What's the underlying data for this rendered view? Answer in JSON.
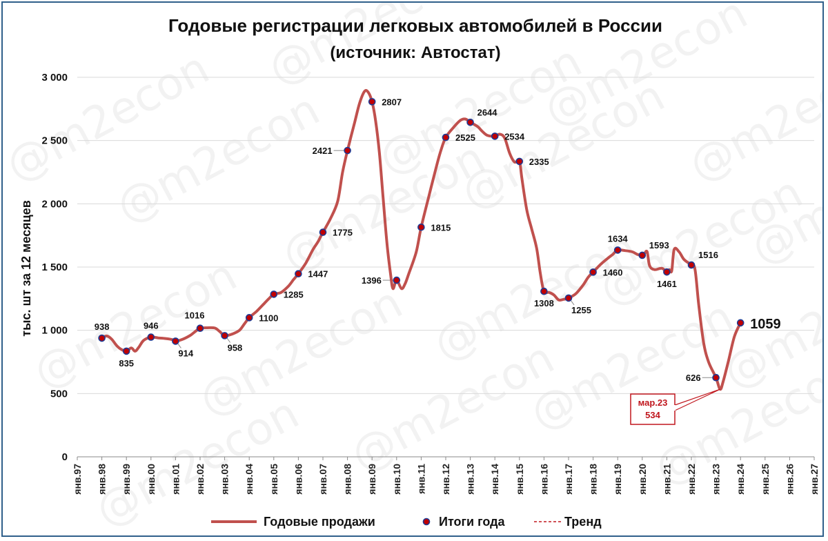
{
  "chart_data": {
    "type": "line",
    "title": "Годовые регистрации легковых автомобилей в России",
    "subtitle": "(источник: Автостат)",
    "ylabel": "тыс. шт за 12 месяцев",
    "ylim": [
      0,
      3000
    ],
    "yticks": [
      "0",
      "500",
      "1 000",
      "1 500",
      "2 000",
      "2 500",
      "3 000"
    ],
    "ytick_values": [
      0,
      500,
      1000,
      1500,
      2000,
      2500,
      3000
    ],
    "x_range": [
      1997,
      2027
    ],
    "xticks": [
      "янв.97",
      "янв.98",
      "янв.99",
      "янв.00",
      "янв.01",
      "янв.02",
      "янв.03",
      "янв.04",
      "янв.05",
      "янв.06",
      "янв.07",
      "янв.08",
      "янв.09",
      "янв.10",
      "янв.11",
      "янв.12",
      "янв.13",
      "янв.14",
      "янв.15",
      "янв.16",
      "янв.17",
      "янв.18",
      "янв.19",
      "янв.20",
      "янв.21",
      "янв.22",
      "янв.23",
      "янв.24",
      "янв.25",
      "янв.26",
      "янв.27"
    ],
    "grid": "horizontal",
    "legend_position": "bottom",
    "colors": {
      "line": "#c0504d",
      "marker_fill": "#c00000",
      "marker_stroke": "#1f3a93",
      "trend": "#c0161d",
      "grid": "#d9d9d9"
    },
    "series": [
      {
        "name": "Годовые продажи",
        "type": "line",
        "points": [
          [
            1998.0,
            938
          ],
          [
            1998.2,
            955
          ],
          [
            1998.4,
            930
          ],
          [
            1998.6,
            880
          ],
          [
            1998.8,
            848
          ],
          [
            1999.0,
            835
          ],
          [
            1999.2,
            860
          ],
          [
            1999.35,
            835
          ],
          [
            1999.5,
            865
          ],
          [
            1999.7,
            920
          ],
          [
            2000.0,
            946
          ],
          [
            2000.3,
            940
          ],
          [
            2000.6,
            935
          ],
          [
            2000.9,
            925
          ],
          [
            2001.0,
            914
          ],
          [
            2001.3,
            930
          ],
          [
            2001.6,
            960
          ],
          [
            2001.8,
            990
          ],
          [
            2002.0,
            1016
          ],
          [
            2002.3,
            1020
          ],
          [
            2002.6,
            1018
          ],
          [
            2002.8,
            990
          ],
          [
            2003.0,
            958
          ],
          [
            2003.3,
            970
          ],
          [
            2003.6,
            1000
          ],
          [
            2003.8,
            1050
          ],
          [
            2004.0,
            1100
          ],
          [
            2004.3,
            1150
          ],
          [
            2004.6,
            1210
          ],
          [
            2004.8,
            1250
          ],
          [
            2005.0,
            1285
          ],
          [
            2005.3,
            1300
          ],
          [
            2005.6,
            1350
          ],
          [
            2005.8,
            1400
          ],
          [
            2006.0,
            1447
          ],
          [
            2006.3,
            1530
          ],
          [
            2006.6,
            1640
          ],
          [
            2006.8,
            1700
          ],
          [
            2007.0,
            1775
          ],
          [
            2007.3,
            1880
          ],
          [
            2007.6,
            2020
          ],
          [
            2007.8,
            2250
          ],
          [
            2008.0,
            2421
          ],
          [
            2008.3,
            2650
          ],
          [
            2008.5,
            2800
          ],
          [
            2008.7,
            2890
          ],
          [
            2008.85,
            2880
          ],
          [
            2009.0,
            2807
          ],
          [
            2009.15,
            2650
          ],
          [
            2009.3,
            2400
          ],
          [
            2009.45,
            2050
          ],
          [
            2009.6,
            1700
          ],
          [
            2009.75,
            1450
          ],
          [
            2009.85,
            1330
          ],
          [
            2010.0,
            1396
          ],
          [
            2010.2,
            1330
          ],
          [
            2010.35,
            1370
          ],
          [
            2010.5,
            1450
          ],
          [
            2010.8,
            1620
          ],
          [
            2011.0,
            1815
          ],
          [
            2011.3,
            2050
          ],
          [
            2011.6,
            2280
          ],
          [
            2011.8,
            2420
          ],
          [
            2012.0,
            2525
          ],
          [
            2012.3,
            2600
          ],
          [
            2012.6,
            2660
          ],
          [
            2012.8,
            2670
          ],
          [
            2013.0,
            2644
          ],
          [
            2013.3,
            2610
          ],
          [
            2013.5,
            2570
          ],
          [
            2013.7,
            2540
          ],
          [
            2014.0,
            2534
          ],
          [
            2014.2,
            2550
          ],
          [
            2014.4,
            2520
          ],
          [
            2014.6,
            2400
          ],
          [
            2014.8,
            2330
          ],
          [
            2015.0,
            2335
          ],
          [
            2015.1,
            2200
          ],
          [
            2015.3,
            1950
          ],
          [
            2015.5,
            1800
          ],
          [
            2015.7,
            1650
          ],
          [
            2015.85,
            1450
          ],
          [
            2016.0,
            1308
          ],
          [
            2016.2,
            1300
          ],
          [
            2016.4,
            1280
          ],
          [
            2016.6,
            1240
          ],
          [
            2016.8,
            1245
          ],
          [
            2017.0,
            1255
          ],
          [
            2017.3,
            1290
          ],
          [
            2017.6,
            1360
          ],
          [
            2017.8,
            1420
          ],
          [
            2018.0,
            1460
          ],
          [
            2018.3,
            1520
          ],
          [
            2018.6,
            1570
          ],
          [
            2018.8,
            1600
          ],
          [
            2019.0,
            1634
          ],
          [
            2019.3,
            1630
          ],
          [
            2019.6,
            1620
          ],
          [
            2019.8,
            1600
          ],
          [
            2020.0,
            1593
          ],
          [
            2020.1,
            1610
          ],
          [
            2020.2,
            1620
          ],
          [
            2020.3,
            1510
          ],
          [
            2020.5,
            1480
          ],
          [
            2020.8,
            1490
          ],
          [
            2021.0,
            1461
          ],
          [
            2021.1,
            1480
          ],
          [
            2021.2,
            1470
          ],
          [
            2021.3,
            1640
          ],
          [
            2021.5,
            1620
          ],
          [
            2021.7,
            1560
          ],
          [
            2022.0,
            1516
          ],
          [
            2022.15,
            1480
          ],
          [
            2022.3,
            1200
          ],
          [
            2022.5,
            900
          ],
          [
            2022.7,
            750
          ],
          [
            2023.0,
            626
          ],
          [
            2023.17,
            534
          ],
          [
            2023.3,
            600
          ],
          [
            2023.5,
            750
          ],
          [
            2023.75,
            950
          ],
          [
            2024.0,
            1059
          ]
        ]
      },
      {
        "name": "Итоги года",
        "type": "scatter",
        "points": [
          {
            "x": 1998,
            "y": 938,
            "label": "938",
            "pos": "above"
          },
          {
            "x": 1999,
            "y": 835,
            "label": "835",
            "pos": "below"
          },
          {
            "x": 2000,
            "y": 946,
            "label": "946",
            "pos": "above"
          },
          {
            "x": 2001,
            "y": 914,
            "label": "914",
            "pos": "below-right"
          },
          {
            "x": 2002,
            "y": 1016,
            "label": "1016",
            "pos": "above-left"
          },
          {
            "x": 2003,
            "y": 958,
            "label": "958",
            "pos": "below-right"
          },
          {
            "x": 2004,
            "y": 1100,
            "label": "1100",
            "pos": "right"
          },
          {
            "x": 2005,
            "y": 1285,
            "label": "1285",
            "pos": "right"
          },
          {
            "x": 2006,
            "y": 1447,
            "label": "1447",
            "pos": "right"
          },
          {
            "x": 2007,
            "y": 1775,
            "label": "1775",
            "pos": "right"
          },
          {
            "x": 2008,
            "y": 2421,
            "label": "2421",
            "pos": "left"
          },
          {
            "x": 2009,
            "y": 2807,
            "label": "2807",
            "pos": "right"
          },
          {
            "x": 2010,
            "y": 1396,
            "label": "1396",
            "pos": "left"
          },
          {
            "x": 2011,
            "y": 1815,
            "label": "1815",
            "pos": "right"
          },
          {
            "x": 2012,
            "y": 2525,
            "label": "2525",
            "pos": "right"
          },
          {
            "x": 2013,
            "y": 2644,
            "label": "2644",
            "pos": "above-right"
          },
          {
            "x": 2014,
            "y": 2534,
            "label": "2534",
            "pos": "right"
          },
          {
            "x": 2015,
            "y": 2335,
            "label": "2335",
            "pos": "right"
          },
          {
            "x": 2016,
            "y": 1308,
            "label": "1308",
            "pos": "below"
          },
          {
            "x": 2017,
            "y": 1255,
            "label": "1255",
            "pos": "below-right"
          },
          {
            "x": 2018,
            "y": 1460,
            "label": "1460",
            "pos": "right"
          },
          {
            "x": 2019,
            "y": 1634,
            "label": "1634",
            "pos": "above"
          },
          {
            "x": 2020,
            "y": 1593,
            "label": "1593",
            "pos": "above-right"
          },
          {
            "x": 2021,
            "y": 1461,
            "label": "1461",
            "pos": "below"
          },
          {
            "x": 2022,
            "y": 1516,
            "label": "1516",
            "pos": "above-right"
          },
          {
            "x": 2023,
            "y": 626,
            "label": "626",
            "pos": "left"
          },
          {
            "x": 2024,
            "y": 1059,
            "label": "1059",
            "pos": "right-big"
          }
        ]
      },
      {
        "name": "Тренд",
        "type": "line-dashed",
        "points": []
      }
    ],
    "annotations": [
      {
        "x": 2023.17,
        "y": 534,
        "lines": [
          "мар.23",
          "534"
        ],
        "style": "callout-box"
      }
    ]
  },
  "watermark": "@m2econ"
}
